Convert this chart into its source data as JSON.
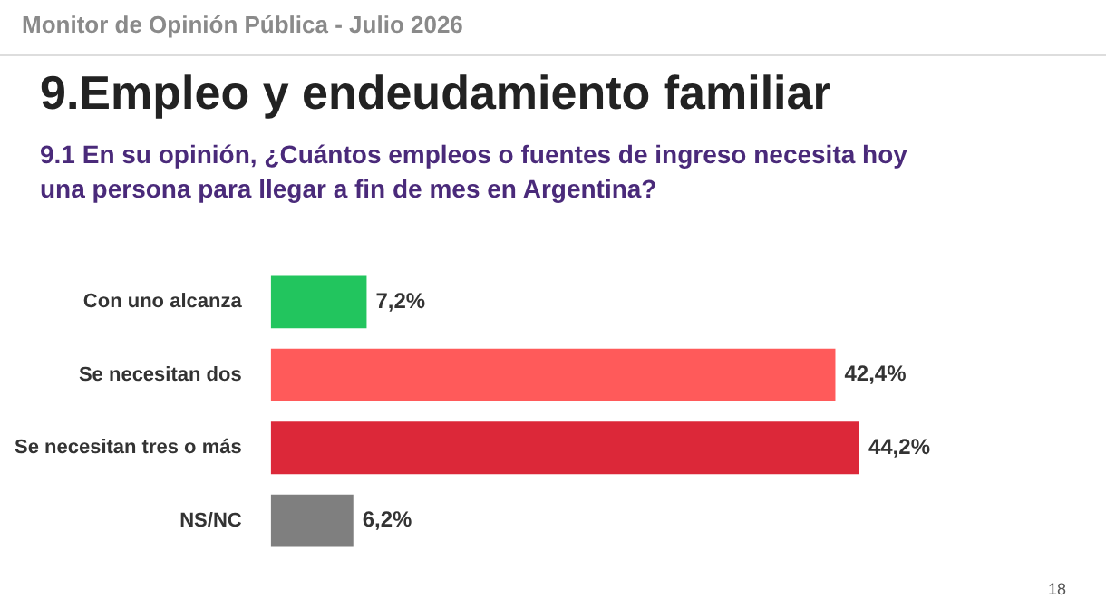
{
  "chart_data": {
    "type": "bar",
    "orientation": "horizontal",
    "title": "9.Empleo y endeudamiento familiar",
    "subtitle": "9.1 En su opinión, ¿Cuántos empleos o fuentes de ingreso necesita hoy una persona para llegar a fin de mes en Argentina?",
    "annotations": [
      "Monitor de Opinión Pública - Julio 2026",
      "18"
    ],
    "categories": [
      "Con uno alcanza",
      "Se necesitan dos",
      "Se necesitan tres o más",
      "NS/NC"
    ],
    "values": [
      7.2,
      42.4,
      44.2,
      6.2
    ],
    "colors": [
      "#22c55e",
      "#ff5a5a",
      "#dc2839",
      "#7f7f7f"
    ],
    "value_labels": [
      "7,2%",
      "42,4%",
      "44,2%",
      "6,2%"
    ]
  }
}
